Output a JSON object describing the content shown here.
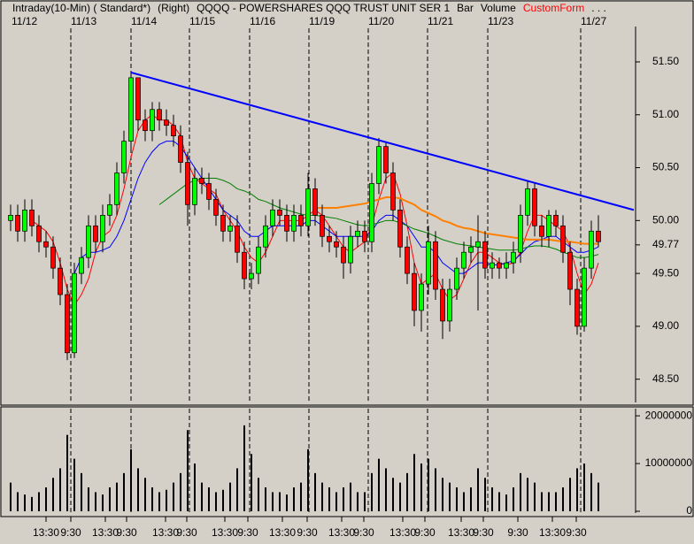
{
  "chart_data": {
    "type": "candlestick",
    "title_parts": [
      "Intraday(10-Min) ( Standard*)",
      "(Right)",
      "QQQQ - POWERSHARES QQQ TRUST UNIT SER 1",
      "Bar",
      "Volume",
      "CustomForm",
      ". . ."
    ],
    "title_colors": [
      "#000000",
      "#000000",
      "#000000",
      "#000000",
      "#000000",
      "#ff0000",
      "#000000"
    ],
    "dates": [
      "11/12",
      "11/13",
      "11/14",
      "11/15",
      "11/16",
      "11/19",
      "11/20",
      "11/21",
      "11/23",
      "11/27"
    ],
    "time_labels": [
      "13:30",
      "9:30",
      "13:30",
      "9:30",
      "13:30",
      "9:30",
      "13:30",
      "9:30",
      "13:30",
      "9:30",
      "13:30",
      "9:30",
      "13:30",
      "9:30",
      "13:30",
      "9:30",
      "9:30",
      "13:30",
      "9:30"
    ],
    "up_color": "#00ff00",
    "down_color": "#ff0000",
    "open": [
      50.0,
      50.05,
      49.9,
      50.1,
      49.95,
      49.8,
      49.75,
      49.55,
      49.3,
      48.75,
      49.5,
      49.65,
      49.95,
      49.8,
      50.05,
      50.15,
      50.45,
      50.75,
      51.35,
      50.95,
      50.85,
      51.05,
      50.95,
      50.9,
      50.8,
      50.55,
      50.15,
      50.4,
      50.35,
      50.2,
      50.05,
      49.9,
      49.95,
      49.7,
      49.45,
      49.5,
      49.75,
      49.95,
      50.1,
      50.05,
      49.9,
      50.05,
      49.95,
      50.3,
      50.05,
      49.85,
      49.8,
      49.75,
      49.6,
      49.85,
      49.9,
      49.8,
      50.35,
      50.7,
      50.45,
      50.1,
      49.75,
      49.5,
      49.15,
      49.4,
      49.8,
      49.35,
      49.05,
      49.35,
      49.55,
      49.7,
      49.75,
      49.8,
      49.55,
      49.6,
      49.55,
      49.6,
      49.7,
      50.05,
      50.3,
      49.95,
      49.85,
      50.05,
      49.95,
      49.7,
      49.35,
      49.0,
      49.55,
      49.9
    ],
    "high": [
      50.15,
      50.15,
      50.2,
      50.2,
      50.05,
      49.9,
      49.85,
      49.65,
      49.4,
      49.6,
      49.75,
      50.05,
      50.05,
      50.15,
      50.25,
      50.55,
      50.85,
      51.4,
      51.35,
      51.05,
      51.12,
      51.12,
      51.05,
      51.0,
      50.9,
      50.65,
      50.5,
      50.5,
      50.45,
      50.3,
      50.15,
      50.05,
      50.05,
      49.8,
      49.6,
      49.85,
      50.05,
      50.2,
      50.2,
      50.15,
      50.15,
      50.15,
      50.45,
      50.4,
      50.15,
      49.95,
      49.9,
      49.85,
      49.95,
      50.0,
      50.0,
      50.45,
      50.78,
      50.75,
      50.55,
      50.2,
      49.85,
      49.6,
      49.5,
      49.95,
      49.9,
      49.45,
      49.45,
      49.65,
      49.8,
      49.85,
      50.05,
      49.9,
      49.7,
      49.65,
      49.7,
      49.8,
      50.15,
      50.38,
      50.35,
      50.05,
      50.1,
      50.1,
      50.05,
      49.8,
      49.45,
      49.65,
      50.0,
      50.05
    ],
    "low": [
      49.9,
      49.8,
      49.8,
      49.85,
      49.7,
      49.65,
      49.45,
      49.2,
      48.68,
      48.7,
      49.4,
      49.55,
      49.7,
      49.7,
      49.95,
      50.05,
      50.35,
      50.65,
      50.85,
      50.75,
      50.75,
      50.85,
      50.8,
      50.7,
      50.45,
      49.95,
      50.05,
      50.25,
      50.1,
      49.95,
      49.8,
      49.8,
      49.6,
      49.35,
      49.35,
      49.4,
      49.65,
      49.85,
      49.95,
      49.8,
      49.8,
      49.85,
      49.85,
      49.95,
      49.75,
      49.7,
      49.65,
      49.45,
      49.5,
      49.75,
      49.7,
      49.7,
      50.25,
      50.35,
      50.0,
      49.65,
      49.4,
      49.0,
      48.95,
      49.3,
      49.25,
      48.88,
      48.95,
      49.25,
      49.45,
      49.6,
      49.15,
      49.45,
      49.45,
      49.45,
      49.45,
      49.5,
      49.6,
      49.95,
      49.85,
      49.75,
      49.75,
      49.85,
      49.6,
      49.2,
      48.92,
      48.95,
      49.45,
      49.75
    ],
    "close": [
      50.05,
      49.9,
      50.1,
      49.95,
      49.8,
      49.75,
      49.55,
      49.3,
      48.75,
      49.5,
      49.65,
      49.95,
      49.8,
      50.05,
      50.15,
      50.45,
      50.75,
      51.35,
      50.95,
      50.85,
      51.05,
      50.95,
      50.9,
      50.8,
      50.55,
      50.15,
      50.4,
      50.35,
      50.2,
      50.05,
      49.9,
      49.95,
      49.7,
      49.45,
      49.5,
      49.75,
      49.95,
      50.1,
      50.05,
      49.9,
      50.05,
      49.95,
      50.3,
      50.05,
      49.85,
      49.8,
      49.75,
      49.6,
      49.85,
      49.9,
      49.8,
      50.35,
      50.7,
      50.45,
      50.1,
      49.75,
      49.5,
      49.15,
      49.4,
      49.8,
      49.35,
      49.05,
      49.35,
      49.55,
      49.7,
      49.75,
      49.8,
      49.55,
      49.6,
      49.55,
      49.6,
      49.7,
      50.05,
      50.3,
      49.95,
      49.85,
      50.05,
      49.95,
      49.7,
      49.35,
      49.0,
      49.55,
      49.9,
      49.8
    ],
    "moving_averages": [
      {
        "color": "#ff0000",
        "values": [
          null,
          null,
          null,
          50.0,
          49.95,
          49.9,
          49.8,
          49.6,
          49.35,
          49.2,
          49.3,
          49.45,
          49.7,
          49.85,
          49.9,
          50.05,
          50.3,
          50.6,
          50.85,
          50.95,
          51.0,
          50.95,
          50.95,
          50.9,
          50.8,
          50.55,
          50.4,
          50.35,
          50.3,
          50.25,
          50.1,
          50.0,
          49.9,
          49.75,
          49.65,
          49.6,
          49.7,
          49.85,
          50.0,
          50.0,
          50.0,
          50.0,
          50.05,
          50.1,
          50.05,
          49.95,
          49.85,
          49.75,
          49.7,
          49.75,
          49.8,
          49.95,
          50.2,
          50.4,
          50.45,
          50.25,
          49.95,
          49.6,
          49.4,
          49.45,
          49.5,
          49.35,
          49.25,
          49.3,
          49.45,
          49.6,
          49.7,
          49.7,
          49.65,
          49.6,
          49.58,
          49.6,
          49.7,
          49.9,
          50.05,
          50.05,
          50.0,
          49.95,
          49.9,
          49.75,
          49.5,
          49.3,
          49.4,
          49.6
        ]
      },
      {
        "color": "#0000ff",
        "values": [
          null,
          null,
          null,
          null,
          null,
          null,
          null,
          null,
          null,
          49.5,
          49.65,
          49.7,
          49.7,
          49.72,
          49.75,
          49.85,
          50.0,
          50.2,
          50.4,
          50.55,
          50.65,
          50.72,
          50.75,
          50.75,
          50.7,
          50.6,
          50.5,
          50.4,
          50.3,
          50.2,
          50.1,
          50.05,
          50.0,
          49.9,
          49.85,
          49.85,
          49.9,
          49.95,
          49.95,
          49.95,
          49.95,
          49.95,
          50.0,
          50.0,
          49.95,
          49.9,
          49.85,
          49.85,
          49.85,
          49.85,
          49.85,
          49.9,
          50.0,
          50.05,
          50.05,
          50.0,
          49.95,
          49.85,
          49.75,
          49.75,
          49.7,
          49.6,
          49.55,
          49.5,
          49.5,
          49.55,
          49.6,
          49.6,
          49.58,
          49.58,
          49.6,
          49.62,
          49.68,
          49.75,
          49.8,
          49.82,
          49.85,
          49.85,
          49.8,
          49.75,
          49.7,
          49.7,
          49.72,
          49.75
        ]
      },
      {
        "color": "#008000",
        "values": [
          null,
          null,
          null,
          null,
          null,
          null,
          null,
          null,
          null,
          null,
          null,
          null,
          null,
          null,
          null,
          null,
          null,
          null,
          null,
          null,
          null,
          50.15,
          50.2,
          50.25,
          50.3,
          50.35,
          50.38,
          50.4,
          50.4,
          50.4,
          50.38,
          50.35,
          50.3,
          50.28,
          50.25,
          50.2,
          50.18,
          50.15,
          50.12,
          50.1,
          50.08,
          50.06,
          50.05,
          50.05,
          50.04,
          50.03,
          50.02,
          50.0,
          49.98,
          49.96,
          49.95,
          49.96,
          49.98,
          50.0,
          50.0,
          49.98,
          49.95,
          49.92,
          49.9,
          49.88,
          49.85,
          49.82,
          49.8,
          49.78,
          49.77,
          49.76,
          49.75,
          49.74,
          49.73,
          49.72,
          49.72,
          49.72,
          49.73,
          49.75,
          49.76,
          49.76,
          49.75,
          49.73,
          49.7,
          49.68,
          49.65,
          49.65,
          49.66,
          49.68
        ]
      },
      {
        "color": "#ff8000",
        "values": [
          null,
          null,
          null,
          null,
          null,
          null,
          null,
          null,
          null,
          null,
          null,
          null,
          null,
          null,
          null,
          null,
          null,
          null,
          null,
          null,
          null,
          null,
          null,
          null,
          null,
          null,
          null,
          null,
          null,
          null,
          null,
          null,
          null,
          null,
          null,
          null,
          null,
          null,
          null,
          null,
          null,
          null,
          null,
          50.12,
          50.12,
          50.12,
          50.12,
          50.13,
          50.14,
          50.15,
          50.16,
          50.18,
          50.2,
          50.22,
          50.22,
          50.21,
          50.18,
          50.15,
          50.1,
          50.07,
          50.04,
          50.0,
          49.98,
          49.95,
          49.93,
          49.92,
          49.9,
          49.88,
          49.87,
          49.86,
          49.85,
          49.84,
          49.83,
          49.82,
          49.82,
          49.82,
          49.82,
          49.81,
          49.8,
          49.8,
          49.79,
          49.78,
          49.78,
          49.78
        ]
      }
    ],
    "trend_line": {
      "color": "#0000ff",
      "values": [
        51.4,
        50.1
      ]
    },
    "ylim": [
      48.28,
      52.06
    ],
    "yticks": [
      {
        "value": 51.5,
        "label": "51.50"
      },
      {
        "value": 51,
        "label": "51.00"
      },
      {
        "value": 50.5,
        "label": "50.50"
      },
      {
        "value": 50,
        "label": "50.00"
      },
      49.77,
      {
        "value": 49.5,
        "label": "49.50"
      },
      {
        "value": 49,
        "label": "49.00"
      },
      {
        "value": 48.5,
        "label": "48.50"
      }
    ],
    "volume": {
      "color": "#000000",
      "values": [
        6000000,
        4000000,
        3500000,
        3000000,
        4000000,
        5000000,
        7000000,
        9000000,
        16000000,
        11000000,
        8000000,
        5000000,
        4000000,
        3500000,
        5000000,
        6000000,
        8000000,
        13000000,
        9000000,
        7000000,
        5000000,
        4000000,
        4500000,
        6000000,
        8000000,
        17000000,
        10000000,
        6000000,
        5000000,
        4000000,
        4500000,
        6000000,
        9000000,
        18000000,
        12000000,
        7000000,
        5000000,
        4000000,
        4000000,
        3500000,
        5000000,
        6000000,
        13000000,
        8000000,
        6000000,
        5000000,
        4000000,
        5000000,
        6000000,
        4000000,
        4000000,
        8000000,
        11000000,
        9000000,
        7000000,
        6000000,
        8000000,
        12000000,
        10000000,
        11000000,
        9000000,
        7000000,
        6000000,
        5000000,
        4000000,
        5000000,
        9000000,
        7000000,
        5000000,
        4000000,
        3500000,
        5000000,
        8000000,
        7000000,
        6000000,
        4000000,
        4000000,
        4000000,
        5000000,
        7000000,
        9000000,
        10000000,
        8000000,
        6000000
      ],
      "ylim": [
        0,
        21500000
      ],
      "yticks": [
        20000000,
        10000000,
        0
      ]
    }
  }
}
